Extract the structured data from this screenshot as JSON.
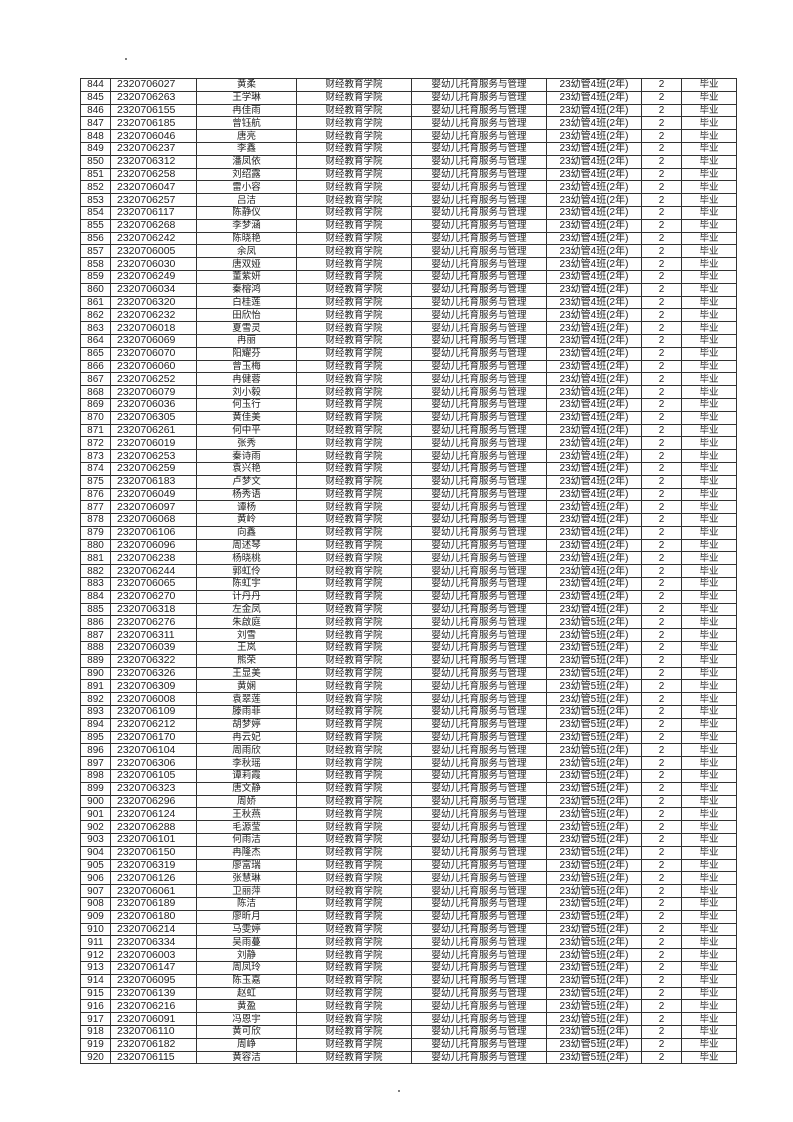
{
  "columns_fixed": {
    "college": "财经教育学院",
    "major": "婴幼儿托育服务与管理",
    "years": "2",
    "status": "毕业"
  },
  "class_names": [
    "23幼管4班(2年)",
    "23幼管5班(2年)"
  ],
  "rows": [
    [
      "844",
      "2320706027",
      "黄柔",
      0
    ],
    [
      "845",
      "2320706263",
      "王学琳",
      0
    ],
    [
      "846",
      "2320706155",
      "冉佳雨",
      0
    ],
    [
      "847",
      "2320706185",
      "曾钰航",
      0
    ],
    [
      "848",
      "2320706046",
      "唐亮",
      0
    ],
    [
      "849",
      "2320706237",
      "李鑫",
      0
    ],
    [
      "850",
      "2320706312",
      "潘凤依",
      0
    ],
    [
      "851",
      "2320706258",
      "刘绍露",
      0
    ],
    [
      "852",
      "2320706047",
      "雷小容",
      0
    ],
    [
      "853",
      "2320706257",
      "吕洁",
      0
    ],
    [
      "854",
      "2320706117",
      "陈静仪",
      0
    ],
    [
      "855",
      "2320706268",
      "李梦涵",
      0
    ],
    [
      "856",
      "2320706242",
      "陈晓艳",
      0
    ],
    [
      "857",
      "2320706005",
      "余凤",
      0
    ],
    [
      "858",
      "2320706030",
      "唐双娅",
      0
    ],
    [
      "859",
      "2320706249",
      "董紫妍",
      0
    ],
    [
      "860",
      "2320706034",
      "秦榕鸿",
      0
    ],
    [
      "861",
      "2320706320",
      "白桂莲",
      0
    ],
    [
      "862",
      "2320706232",
      "田欣怡",
      0
    ],
    [
      "863",
      "2320706018",
      "夏雪灵",
      0
    ],
    [
      "864",
      "2320706069",
      "冉丽",
      0
    ],
    [
      "865",
      "2320706070",
      "阳耀芬",
      0
    ],
    [
      "866",
      "2320706060",
      "曾玉梅",
      0
    ],
    [
      "867",
      "2320706252",
      "冉健蓉",
      0
    ],
    [
      "868",
      "2320706079",
      "刘小毅",
      0
    ],
    [
      "869",
      "2320706036",
      "何玉行",
      0
    ],
    [
      "870",
      "2320706305",
      "黄佳美",
      0
    ],
    [
      "871",
      "2320706261",
      "何中平",
      0
    ],
    [
      "872",
      "2320706019",
      "张秀",
      0
    ],
    [
      "873",
      "2320706253",
      "秦诗雨",
      0
    ],
    [
      "874",
      "2320706259",
      "袁兴艳",
      0
    ],
    [
      "875",
      "2320706183",
      "卢梦文",
      0
    ],
    [
      "876",
      "2320706049",
      "杨秀语",
      0
    ],
    [
      "877",
      "2320706097",
      "谭杨",
      0
    ],
    [
      "878",
      "2320706068",
      "黄岭",
      0
    ],
    [
      "879",
      "2320706106",
      "向鑫",
      0
    ],
    [
      "880",
      "2320706096",
      "周述琴",
      0
    ],
    [
      "881",
      "2320706238",
      "杨晓桃",
      0
    ],
    [
      "882",
      "2320706244",
      "郭虹伶",
      0
    ],
    [
      "883",
      "2320706065",
      "陈虹宇",
      0
    ],
    [
      "884",
      "2320706270",
      "计丹丹",
      0
    ],
    [
      "885",
      "2320706318",
      "左金凤",
      0
    ],
    [
      "886",
      "2320706276",
      "朱啟庭",
      1
    ],
    [
      "887",
      "2320706311",
      "刘雪",
      1
    ],
    [
      "888",
      "2320706039",
      "王岚",
      1
    ],
    [
      "889",
      "2320706322",
      "熊荣",
      1
    ],
    [
      "890",
      "2320706326",
      "王显美",
      1
    ],
    [
      "891",
      "2320706309",
      "黄娴",
      1
    ],
    [
      "892",
      "2320706008",
      "袁翠莲",
      1
    ],
    [
      "893",
      "2320706109",
      "滕雨菲",
      1
    ],
    [
      "894",
      "2320706212",
      "胡梦婷",
      1
    ],
    [
      "895",
      "2320706170",
      "冉云妃",
      1
    ],
    [
      "896",
      "2320706104",
      "周雨欣",
      1
    ],
    [
      "897",
      "2320706306",
      "李秋瑶",
      1
    ],
    [
      "898",
      "2320706105",
      "谭莉霞",
      1
    ],
    [
      "899",
      "2320706323",
      "唐文静",
      1
    ],
    [
      "900",
      "2320706296",
      "周娇",
      1
    ],
    [
      "901",
      "2320706124",
      "王秋燕",
      1
    ],
    [
      "902",
      "2320706288",
      "毛源莹",
      1
    ],
    [
      "903",
      "2320706101",
      "何雨洁",
      1
    ],
    [
      "904",
      "2320706150",
      "冉隆杰",
      1
    ],
    [
      "905",
      "2320706319",
      "廖富瑞",
      1
    ],
    [
      "906",
      "2320706126",
      "张慧琳",
      1
    ],
    [
      "907",
      "2320706061",
      "卫丽萍",
      1
    ],
    [
      "908",
      "2320706189",
      "陈洁",
      1
    ],
    [
      "909",
      "2320706180",
      "廖昕月",
      1
    ],
    [
      "910",
      "2320706214",
      "马雯婷",
      1
    ],
    [
      "911",
      "2320706334",
      "吴雨蔓",
      1
    ],
    [
      "912",
      "2320706003",
      "刘静",
      1
    ],
    [
      "913",
      "2320706147",
      "周凤玲",
      1
    ],
    [
      "914",
      "2320706095",
      "陈玉嘉",
      1
    ],
    [
      "915",
      "2320706139",
      "赵虹",
      1
    ],
    [
      "916",
      "2320706216",
      "黄盈",
      1
    ],
    [
      "917",
      "2320706091",
      "冯恩宇",
      1
    ],
    [
      "918",
      "2320706110",
      "黄可欣",
      1
    ],
    [
      "919",
      "2320706182",
      "周峥",
      1
    ],
    [
      "920",
      "2320706115",
      "黄容洁",
      1
    ]
  ]
}
